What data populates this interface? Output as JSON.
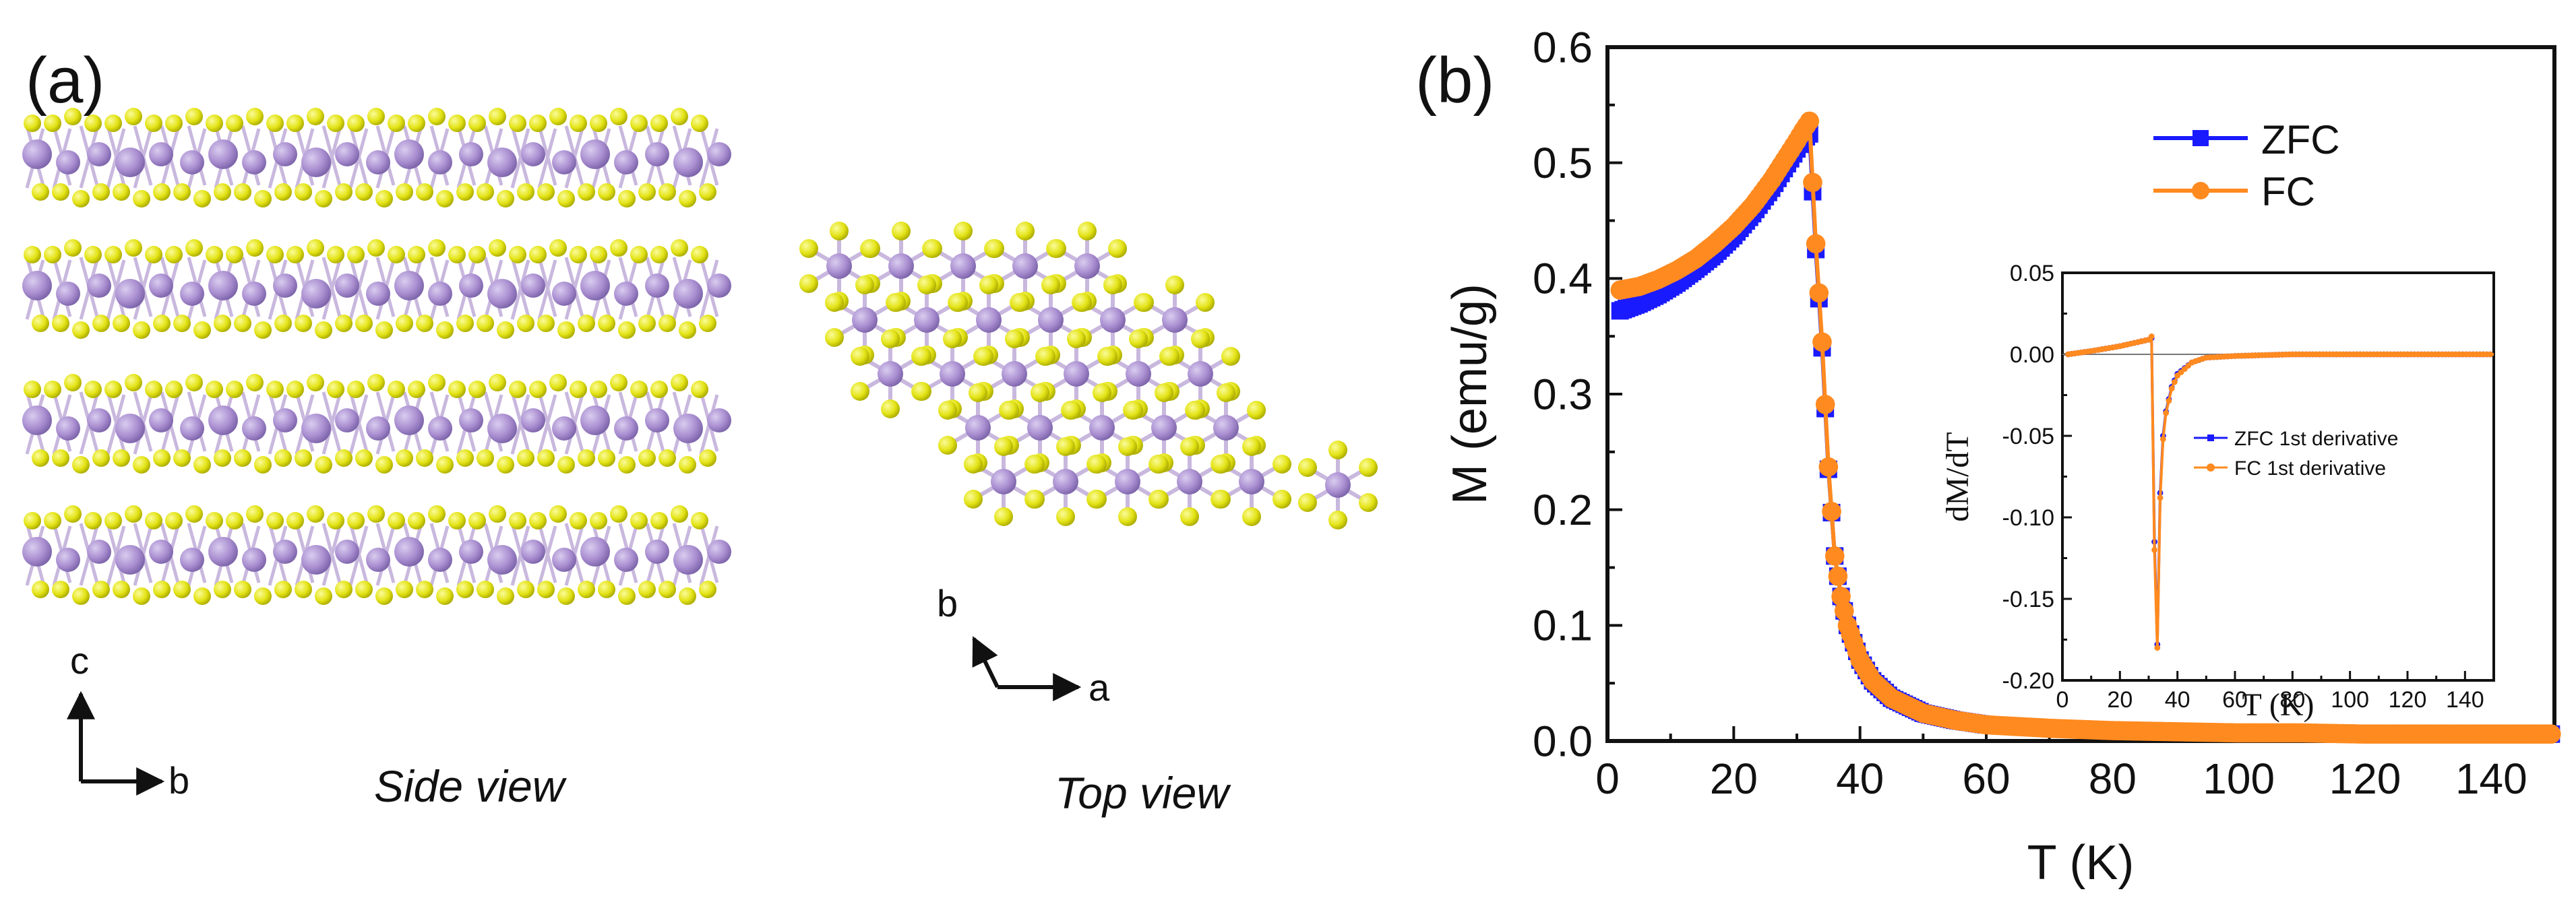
{
  "panel_a": {
    "label": "(a)",
    "side_view": {
      "caption": "Side view",
      "axis_up": "c",
      "axis_right": "b"
    },
    "top_view": {
      "caption": "Top view",
      "axis_up": "b",
      "axis_right": "a"
    },
    "colors": {
      "metal_atom": "#a98ed0",
      "chalcogen_atom": "#e3e316",
      "bond": "#c9b8de"
    }
  },
  "panel_b": {
    "label": "(b)"
  },
  "chart_data": [
    {
      "type": "line",
      "title": "",
      "xlabel": "T (K)",
      "ylabel": "M (emu/g)",
      "xlim": [
        0,
        150
      ],
      "ylim": [
        0,
        0.6
      ],
      "xticks": [
        0,
        20,
        40,
        60,
        80,
        100,
        120,
        140
      ],
      "yticks": [
        0.0,
        0.1,
        0.2,
        0.3,
        0.4,
        0.5,
        0.6
      ],
      "xtick_labels": [
        "0",
        "20",
        "40",
        "60",
        "80",
        "100",
        "120",
        "140"
      ],
      "ytick_labels": [
        "0.0",
        "0.1",
        "0.2",
        "0.3",
        "0.4",
        "0.5",
        "0.6"
      ],
      "legend_position": "top-right",
      "series": [
        {
          "name": "ZFC",
          "color": "#1a1aff",
          "marker": "square",
          "x": [
            2,
            5,
            8,
            11,
            14,
            17,
            20,
            23,
            26,
            28,
            30,
            31,
            32,
            33,
            34,
            35,
            36,
            37,
            38,
            40,
            42,
            45,
            50,
            55,
            60,
            70,
            80,
            90,
            100,
            110,
            120,
            130,
            140,
            150
          ],
          "y": [
            0.372,
            0.378,
            0.386,
            0.396,
            0.408,
            0.421,
            0.437,
            0.456,
            0.478,
            0.495,
            0.512,
            0.52,
            0.525,
            0.425,
            0.34,
            0.235,
            0.16,
            0.125,
            0.1,
            0.07,
            0.052,
            0.037,
            0.024,
            0.018,
            0.014,
            0.011,
            0.009,
            0.008,
            0.007,
            0.007,
            0.006,
            0.006,
            0.006,
            0.006
          ]
        },
        {
          "name": "FC",
          "color": "#ff8a1f",
          "marker": "circle",
          "x": [
            2,
            5,
            8,
            11,
            14,
            17,
            20,
            23,
            26,
            28,
            30,
            31,
            32,
            33,
            34,
            35,
            36,
            37,
            38,
            40,
            42,
            45,
            50,
            55,
            60,
            70,
            80,
            90,
            100,
            110,
            120,
            130,
            140,
            150
          ],
          "y": [
            0.39,
            0.393,
            0.399,
            0.407,
            0.417,
            0.43,
            0.445,
            0.463,
            0.485,
            0.502,
            0.519,
            0.528,
            0.536,
            0.43,
            0.345,
            0.237,
            0.16,
            0.125,
            0.1,
            0.07,
            0.052,
            0.037,
            0.024,
            0.018,
            0.014,
            0.011,
            0.009,
            0.008,
            0.007,
            0.007,
            0.006,
            0.006,
            0.006,
            0.006
          ]
        }
      ]
    },
    {
      "type": "line",
      "title": "",
      "xlabel": "T (K)",
      "ylabel": "dM/dT",
      "xlim": [
        0,
        150
      ],
      "ylim": [
        -0.2,
        0.05
      ],
      "xticks": [
        0,
        20,
        40,
        60,
        80,
        100,
        120,
        140
      ],
      "yticks": [
        -0.2,
        -0.15,
        -0.1,
        -0.05,
        0.0,
        0.05
      ],
      "xtick_labels": [
        "0",
        "20",
        "40",
        "60",
        "80",
        "100",
        "120",
        "140"
      ],
      "ytick_labels": [
        "-0.20",
        "-0.15",
        "-0.10",
        "-0.05",
        "0.00",
        "0.05"
      ],
      "legend_position": "center-right",
      "series": [
        {
          "name": "ZFC 1st derivative",
          "color": "#1a1aff",
          "x": [
            2,
            10,
            20,
            25,
            30,
            31,
            32,
            33,
            34,
            35,
            36,
            38,
            40,
            45,
            50,
            60,
            80,
            100,
            120,
            150
          ],
          "y": [
            0.0,
            0.002,
            0.005,
            0.007,
            0.009,
            0.01,
            -0.115,
            -0.178,
            -0.085,
            -0.05,
            -0.035,
            -0.02,
            -0.012,
            -0.005,
            -0.002,
            -0.001,
            0.0,
            0.0,
            0.0,
            0.0
          ]
        },
        {
          "name": "FC 1st derivative",
          "color": "#ff8a1f",
          "x": [
            2,
            10,
            20,
            25,
            30,
            31,
            32,
            33,
            34,
            35,
            36,
            38,
            40,
            45,
            50,
            60,
            80,
            100,
            120,
            150
          ],
          "y": [
            0.0,
            0.002,
            0.005,
            0.007,
            0.009,
            0.011,
            -0.12,
            -0.18,
            -0.088,
            -0.052,
            -0.036,
            -0.021,
            -0.013,
            -0.005,
            -0.002,
            -0.001,
            0.0,
            0.0,
            0.0,
            0.0
          ]
        }
      ]
    }
  ]
}
